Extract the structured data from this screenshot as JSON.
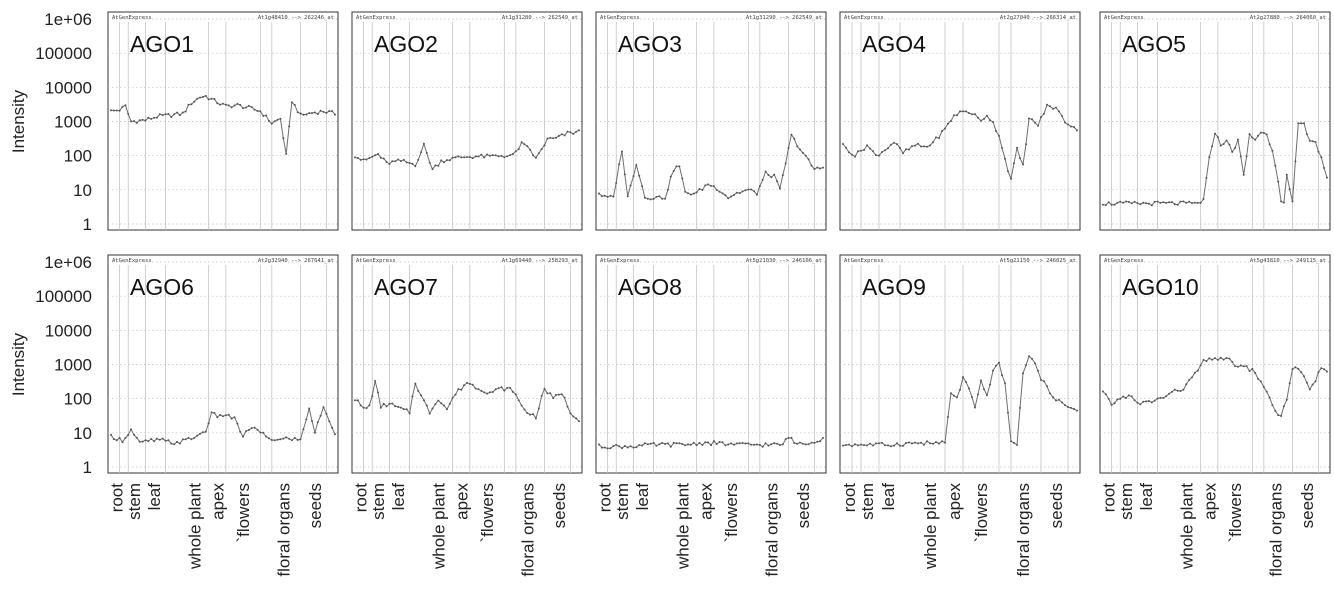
{
  "chart_data": {
    "type": "line",
    "ylabel": "Intensity",
    "yscale": "log",
    "ylim": [
      1,
      1000000
    ],
    "yticks": [
      "1",
      "10",
      "100",
      "1000",
      "10000",
      "100000",
      "1e+06"
    ],
    "grid": true,
    "categories": [
      "root",
      "stem",
      "leaf",
      "whole plant",
      "apex",
      "`flowers",
      "floral organs",
      "seeds"
    ],
    "n_samples": 79,
    "header_left": "AtGenExpress",
    "series_color": "#6e6e6e",
    "panels": [
      {
        "name": "AGO1",
        "legend": "At1g48410 --> 262246_at",
        "anchors": [
          [
            0,
            2000
          ],
          [
            3,
            2200
          ],
          [
            5,
            2800
          ],
          [
            7,
            1000
          ],
          [
            12,
            1100
          ],
          [
            16,
            1400
          ],
          [
            20,
            1500
          ],
          [
            25,
            1700
          ],
          [
            28,
            3500
          ],
          [
            31,
            5200
          ],
          [
            33,
            5500
          ],
          [
            36,
            4000
          ],
          [
            40,
            2800
          ],
          [
            44,
            3000
          ],
          [
            48,
            2500
          ],
          [
            52,
            2000
          ],
          [
            56,
            900
          ],
          [
            59,
            1200
          ],
          [
            61,
            100
          ],
          [
            63,
            4000
          ],
          [
            66,
            1500
          ],
          [
            70,
            1800
          ],
          [
            74,
            2000
          ],
          [
            78,
            1700
          ]
        ]
      },
      {
        "name": "AGO2",
        "legend": "At1g31280 --> 262549_at",
        "anchors": [
          [
            0,
            100
          ],
          [
            3,
            70
          ],
          [
            8,
            110
          ],
          [
            11,
            60
          ],
          [
            16,
            70
          ],
          [
            21,
            55
          ],
          [
            24,
            200
          ],
          [
            27,
            40
          ],
          [
            30,
            70
          ],
          [
            33,
            80
          ],
          [
            37,
            90
          ],
          [
            41,
            95
          ],
          [
            46,
            95
          ],
          [
            51,
            100
          ],
          [
            55,
            100
          ],
          [
            58,
            220
          ],
          [
            61,
            150
          ],
          [
            63,
            80
          ],
          [
            67,
            300
          ],
          [
            70,
            320
          ],
          [
            74,
            450
          ],
          [
            78,
            500
          ]
        ]
      },
      {
        "name": "AGO3",
        "legend": "At1g31290 --> 262549_at",
        "anchors": [
          [
            0,
            8
          ],
          [
            2,
            6
          ],
          [
            5,
            6
          ],
          [
            8,
            150
          ],
          [
            10,
            6
          ],
          [
            13,
            60
          ],
          [
            16,
            6
          ],
          [
            19,
            6
          ],
          [
            23,
            6
          ],
          [
            26,
            40
          ],
          [
            28,
            50
          ],
          [
            30,
            8
          ],
          [
            34,
            8
          ],
          [
            38,
            15
          ],
          [
            42,
            10
          ],
          [
            45,
            6
          ],
          [
            48,
            8
          ],
          [
            52,
            10
          ],
          [
            55,
            8
          ],
          [
            58,
            30
          ],
          [
            61,
            25
          ],
          [
            63,
            10
          ],
          [
            67,
            380
          ],
          [
            71,
            120
          ],
          [
            75,
            40
          ],
          [
            78,
            45
          ]
        ]
      },
      {
        "name": "AGO4",
        "legend": "At2g27040 --> 266314_at",
        "anchors": [
          [
            0,
            200
          ],
          [
            4,
            100
          ],
          [
            8,
            200
          ],
          [
            11,
            100
          ],
          [
            14,
            150
          ],
          [
            17,
            250
          ],
          [
            20,
            120
          ],
          [
            24,
            200
          ],
          [
            28,
            180
          ],
          [
            31,
            300
          ],
          [
            34,
            600
          ],
          [
            37,
            1500
          ],
          [
            40,
            2000
          ],
          [
            43,
            1800
          ],
          [
            46,
            1000
          ],
          [
            48,
            1600
          ],
          [
            50,
            900
          ],
          [
            52,
            400
          ],
          [
            54,
            80
          ],
          [
            56,
            20
          ],
          [
            58,
            150
          ],
          [
            60,
            50
          ],
          [
            62,
            1200
          ],
          [
            65,
            800
          ],
          [
            68,
            2800
          ],
          [
            71,
            2500
          ],
          [
            74,
            1000
          ],
          [
            78,
            600
          ]
        ]
      },
      {
        "name": "AGO5",
        "legend": "At2g27880 --> 264060_at",
        "anchors": [
          [
            0,
            4
          ],
          [
            10,
            4
          ],
          [
            20,
            4
          ],
          [
            28,
            4
          ],
          [
            33,
            4
          ],
          [
            35,
            5
          ],
          [
            37,
            80
          ],
          [
            39,
            500
          ],
          [
            41,
            200
          ],
          [
            43,
            300
          ],
          [
            45,
            120
          ],
          [
            47,
            300
          ],
          [
            49,
            25
          ],
          [
            51,
            400
          ],
          [
            53,
            300
          ],
          [
            55,
            500
          ],
          [
            57,
            400
          ],
          [
            59,
            150
          ],
          [
            61,
            20
          ],
          [
            62,
            5
          ],
          [
            63,
            4
          ],
          [
            64,
            25
          ],
          [
            66,
            4
          ],
          [
            68,
            900
          ],
          [
            70,
            800
          ],
          [
            72,
            300
          ],
          [
            74,
            250
          ],
          [
            76,
            80
          ],
          [
            78,
            20
          ]
        ]
      },
      {
        "name": "AGO6",
        "legend": "At2g32940 --> 267641_at",
        "anchors": [
          [
            0,
            8
          ],
          [
            4,
            6
          ],
          [
            7,
            12
          ],
          [
            10,
            5
          ],
          [
            14,
            6
          ],
          [
            18,
            6
          ],
          [
            22,
            5
          ],
          [
            26,
            6
          ],
          [
            30,
            8
          ],
          [
            33,
            12
          ],
          [
            35,
            35
          ],
          [
            38,
            30
          ],
          [
            40,
            35
          ],
          [
            43,
            25
          ],
          [
            46,
            8
          ],
          [
            49,
            15
          ],
          [
            52,
            10
          ],
          [
            55,
            7
          ],
          [
            58,
            6
          ],
          [
            62,
            7
          ],
          [
            66,
            6
          ],
          [
            69,
            55
          ],
          [
            71,
            10
          ],
          [
            74,
            60
          ],
          [
            76,
            20
          ],
          [
            78,
            10
          ]
        ]
      },
      {
        "name": "AGO7",
        "legend": "At1g69440 --> 258293_at",
        "anchors": [
          [
            0,
            100
          ],
          [
            3,
            50
          ],
          [
            5,
            60
          ],
          [
            7,
            300
          ],
          [
            9,
            60
          ],
          [
            12,
            70
          ],
          [
            16,
            50
          ],
          [
            19,
            40
          ],
          [
            21,
            300
          ],
          [
            23,
            120
          ],
          [
            26,
            40
          ],
          [
            29,
            100
          ],
          [
            32,
            50
          ],
          [
            35,
            140
          ],
          [
            39,
            300
          ],
          [
            43,
            200
          ],
          [
            47,
            150
          ],
          [
            51,
            200
          ],
          [
            55,
            180
          ],
          [
            58,
            60
          ],
          [
            60,
            40
          ],
          [
            63,
            30
          ],
          [
            66,
            200
          ],
          [
            69,
            100
          ],
          [
            72,
            150
          ],
          [
            75,
            40
          ],
          [
            78,
            25
          ]
        ]
      },
      {
        "name": "AGO8",
        "legend": "At5g21030 --> 246106_at",
        "anchors": [
          [
            0,
            4
          ],
          [
            10,
            4
          ],
          [
            20,
            4.5
          ],
          [
            30,
            4.5
          ],
          [
            35,
            5
          ],
          [
            40,
            5
          ],
          [
            48,
            4.5
          ],
          [
            55,
            4.5
          ],
          [
            60,
            4.5
          ],
          [
            64,
            4.5
          ],
          [
            66,
            8
          ],
          [
            68,
            5
          ],
          [
            72,
            5
          ],
          [
            76,
            6
          ],
          [
            78,
            7
          ]
        ]
      },
      {
        "name": "AGO9",
        "legend": "At5g21150 --> 246025_at",
        "anchors": [
          [
            0,
            4.5
          ],
          [
            8,
            4.5
          ],
          [
            16,
            4.5
          ],
          [
            24,
            5
          ],
          [
            30,
            5
          ],
          [
            34,
            5
          ],
          [
            36,
            150
          ],
          [
            38,
            100
          ],
          [
            40,
            400
          ],
          [
            42,
            200
          ],
          [
            44,
            50
          ],
          [
            46,
            300
          ],
          [
            48,
            120
          ],
          [
            50,
            700
          ],
          [
            52,
            1000
          ],
          [
            54,
            300
          ],
          [
            56,
            5
          ],
          [
            58,
            5
          ],
          [
            60,
            500
          ],
          [
            62,
            2000
          ],
          [
            64,
            1000
          ],
          [
            66,
            400
          ],
          [
            68,
            200
          ],
          [
            71,
            100
          ],
          [
            74,
            60
          ],
          [
            78,
            50
          ]
        ]
      },
      {
        "name": "AGO10",
        "legend": "At5g43810 --> 249115_at",
        "anchors": [
          [
            0,
            150
          ],
          [
            3,
            70
          ],
          [
            6,
            100
          ],
          [
            9,
            130
          ],
          [
            12,
            70
          ],
          [
            16,
            80
          ],
          [
            20,
            100
          ],
          [
            24,
            150
          ],
          [
            28,
            200
          ],
          [
            31,
            400
          ],
          [
            33,
            700
          ],
          [
            35,
            1200
          ],
          [
            38,
            1400
          ],
          [
            41,
            1600
          ],
          [
            44,
            1300
          ],
          [
            47,
            900
          ],
          [
            50,
            800
          ],
          [
            53,
            600
          ],
          [
            56,
            200
          ],
          [
            58,
            120
          ],
          [
            60,
            40
          ],
          [
            62,
            30
          ],
          [
            64,
            100
          ],
          [
            66,
            800
          ],
          [
            68,
            700
          ],
          [
            70,
            400
          ],
          [
            72,
            200
          ],
          [
            74,
            300
          ],
          [
            76,
            900
          ],
          [
            78,
            600
          ]
        ]
      }
    ]
  }
}
